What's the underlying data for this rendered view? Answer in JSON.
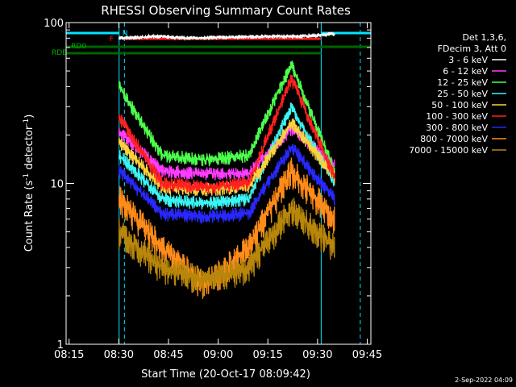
{
  "chart_data": {
    "type": "line",
    "title": "RHESSI Observing Summary Count Rates",
    "xlabel": "Start Time (20-Oct-17 08:09:42)",
    "ylabel_main": "Count Rate (s",
    "ylabel_sup": "-1",
    "ylabel_mid": " detector",
    "ylabel_sup2": "-1",
    "ylabel_end": ")",
    "y_scale": "log",
    "ylim": [
      1,
      100
    ],
    "xlim_min": [
      8,
      100
    ],
    "x_ticks": [
      "08:15",
      "08:30",
      "08:45",
      "09:00",
      "09:15",
      "09:30",
      "09:45"
    ],
    "y_ticks": [
      "1",
      "10",
      "100"
    ],
    "legend_header": [
      "Det 1,3,6,",
      "FDecim 3, Att 0"
    ],
    "date_stamp": "2-Sep-2022 04:09",
    "flags": {
      "N_label": "N",
      "F_label": "F",
      "RD0_label": "RD0",
      "RDB_label": "RDB"
    },
    "night_intervals_min": [
      [
        8,
        24
      ],
      [
        85,
        100
      ]
    ],
    "saa_dashed_min": [
      25.6,
      96.8
    ],
    "data_end_min": [
      24,
      89
    ],
    "series": [
      {
        "name": "3 - 6 keV",
        "color": "#ffffff",
        "values": [
          80,
          82,
          80,
          81,
          82,
          82,
          85
        ]
      },
      {
        "name": "6 - 12 keV",
        "color": "#ff3cff",
        "values": [
          21,
          12,
          11.5,
          11.5,
          22,
          13
        ]
      },
      {
        "name": "12 - 25 keV",
        "color": "#4cff4c",
        "values": [
          40,
          15,
          14,
          15,
          55,
          12
        ]
      },
      {
        "name": "25 - 50 keV",
        "color": "#3cf4f4",
        "values": [
          15,
          8,
          7.5,
          8,
          30,
          10
        ]
      },
      {
        "name": "50 - 100 keV",
        "color": "#ffd23c",
        "values": [
          18,
          9.5,
          9.2,
          9.5,
          24,
          11
        ]
      },
      {
        "name": "100 - 300 keV",
        "color": "#ff2020",
        "values": [
          26,
          10,
          9.5,
          10,
          45,
          11
        ]
      },
      {
        "name": "300 - 800 keV",
        "color": "#2828ff",
        "values": [
          12,
          6.5,
          6.2,
          6.5,
          17,
          8
        ]
      },
      {
        "name": "800 - 7000 keV",
        "color": "#ff8c1a",
        "values": [
          8,
          4,
          2.3,
          4,
          12,
          6
        ]
      },
      {
        "name": "7000 - 15000 keV",
        "color": "#b8860b",
        "values": [
          5,
          3,
          2.5,
          3,
          7,
          4
        ]
      }
    ]
  }
}
